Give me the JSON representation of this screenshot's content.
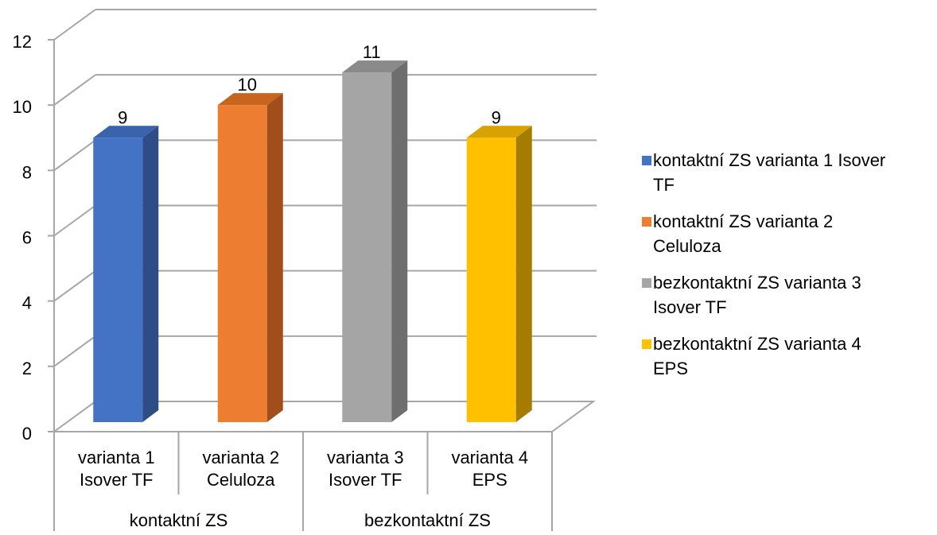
{
  "chart_data": {
    "type": "bar",
    "style": "3d-column",
    "ylim": [
      0,
      12
    ],
    "yticks": [
      0,
      2,
      4,
      6,
      8,
      10,
      12
    ],
    "grid": true,
    "legend_position": "right",
    "categories": [
      {
        "label_lines": [
          "varianta 1",
          "Isover TF"
        ],
        "group": "kontaktní ZS"
      },
      {
        "label_lines": [
          "varianta 2",
          "Celuloza"
        ],
        "group": "kontaktní ZS"
      },
      {
        "label_lines": [
          "varianta 3",
          "Isover TF"
        ],
        "group": "bezkontaktní ZS"
      },
      {
        "label_lines": [
          "varianta 4",
          "EPS"
        ],
        "group": "bezkontaktní ZS"
      }
    ],
    "groups": [
      "kontaktní ZS",
      "bezkontaktní ZS"
    ],
    "series": [
      {
        "name": "kontaktní ZS varianta 1 Isover TF",
        "legend_lines": [
          "kontaktní ZS varianta 1 Isover",
          "TF"
        ],
        "values": [
          9,
          null,
          null,
          null
        ],
        "color": "#4472C4",
        "side_color": "#2E4D84",
        "top_color": "#3A63AD"
      },
      {
        "name": "kontaktní ZS varianta 2 Celuloza",
        "legend_lines": [
          "kontaktní ZS varianta 2",
          "Celuloza"
        ],
        "values": [
          null,
          10,
          null,
          null
        ],
        "color": "#ED7D31",
        "side_color": "#A14E1C",
        "top_color": "#C7651F"
      },
      {
        "name": "bezkontaktní ZS varianta 3 Isover TF",
        "legend_lines": [
          "bezkontaktní ZS varianta 3",
          "Isover TF"
        ],
        "values": [
          null,
          null,
          11,
          null
        ],
        "color": "#A5A5A5",
        "side_color": "#6E6E6E",
        "top_color": "#8A8A8A"
      },
      {
        "name": "bezkontaktní ZS varianta 4 EPS",
        "legend_lines": [
          "bezkontaktní ZS varianta 4",
          "EPS"
        ],
        "values": [
          null,
          null,
          null,
          9
        ],
        "color": "#FFC000",
        "side_color": "#A57C00",
        "top_color": "#D8A300"
      }
    ]
  }
}
